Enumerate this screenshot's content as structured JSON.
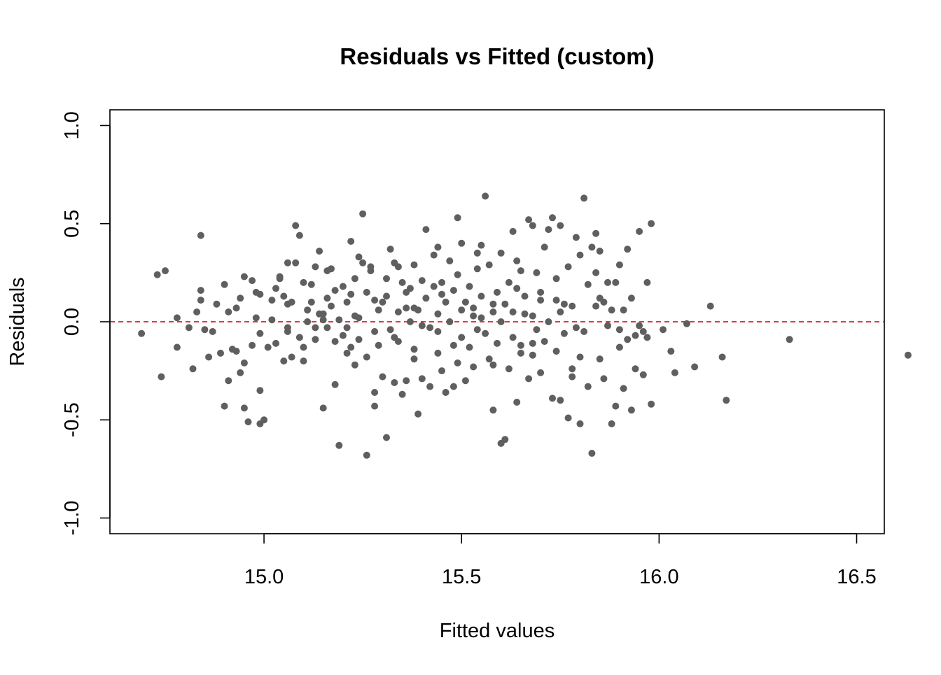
{
  "chart_data": {
    "type": "scatter",
    "title": "Residuals vs Fitted (custom)",
    "xlabel": "Fitted values",
    "ylabel": "Residuals",
    "xlim": [
      14.61,
      16.57
    ],
    "ylim": [
      -1.08,
      1.08
    ],
    "xticks": [
      {
        "value": 15.0,
        "label": "15.0"
      },
      {
        "value": 15.5,
        "label": "15.5"
      },
      {
        "value": 16.0,
        "label": "16.0"
      },
      {
        "value": 16.5,
        "label": "16.5"
      }
    ],
    "yticks": [
      {
        "value": -1.0,
        "label": "-1.0"
      },
      {
        "value": -0.5,
        "label": "-0.5"
      },
      {
        "value": 0.0,
        "label": "0.0"
      },
      {
        "value": 0.5,
        "label": "0.5"
      },
      {
        "value": 1.0,
        "label": "1.0"
      }
    ],
    "reference_line": {
      "y": 0,
      "style": "dashed",
      "color": "#e31a1c"
    },
    "point_color": "#5f5f5f",
    "grid": false,
    "series": [
      {
        "points": [
          [
            14.69,
            -0.06
          ],
          [
            14.73,
            0.24
          ],
          [
            14.75,
            0.26
          ],
          [
            14.74,
            -0.28
          ],
          [
            14.78,
            0.02
          ],
          [
            14.78,
            -0.13
          ],
          [
            14.81,
            -0.03
          ],
          [
            14.82,
            -0.24
          ],
          [
            14.83,
            0.05
          ],
          [
            14.84,
            0.16
          ],
          [
            14.84,
            0.11
          ],
          [
            14.84,
            0.44
          ],
          [
            14.85,
            -0.04
          ],
          [
            14.86,
            -0.18
          ],
          [
            14.87,
            -0.05
          ],
          [
            14.88,
            0.09
          ],
          [
            14.89,
            -0.16
          ],
          [
            14.9,
            0.19
          ],
          [
            14.9,
            -0.43
          ],
          [
            14.91,
            -0.3
          ],
          [
            14.91,
            0.05
          ],
          [
            14.92,
            -0.14
          ],
          [
            14.93,
            0.07
          ],
          [
            14.93,
            -0.15
          ],
          [
            14.94,
            -0.26
          ],
          [
            14.94,
            0.12
          ],
          [
            14.95,
            -0.21
          ],
          [
            14.95,
            0.23
          ],
          [
            14.95,
            -0.44
          ],
          [
            14.96,
            -0.51
          ],
          [
            14.97,
            -0.12
          ],
          [
            14.97,
            0.21
          ],
          [
            14.98,
            0.15
          ],
          [
            14.98,
            0.02
          ],
          [
            14.99,
            -0.35
          ],
          [
            14.99,
            -0.52
          ],
          [
            14.99,
            0.14
          ],
          [
            15.0,
            -0.5
          ],
          [
            15.01,
            -0.13
          ],
          [
            15.02,
            0.11
          ],
          [
            15.03,
            0.17
          ],
          [
            15.03,
            -0.11
          ],
          [
            15.04,
            0.22
          ],
          [
            15.04,
            0.23
          ],
          [
            15.05,
            0.13
          ],
          [
            15.06,
            0.09
          ],
          [
            15.06,
            -0.03
          ],
          [
            15.06,
            -0.05
          ],
          [
            15.07,
            0.1
          ],
          [
            15.08,
            0.3
          ],
          [
            15.08,
            0.49
          ],
          [
            15.09,
            0.44
          ],
          [
            15.09,
            -0.08
          ],
          [
            15.1,
            -0.2
          ],
          [
            15.1,
            -0.13
          ],
          [
            15.11,
            0.0
          ],
          [
            15.12,
            0.1
          ],
          [
            15.12,
            0.19
          ],
          [
            15.13,
            -0.03
          ],
          [
            15.13,
            0.28
          ],
          [
            15.14,
            0.36
          ],
          [
            15.14,
            0.04
          ],
          [
            15.15,
            0.04
          ],
          [
            15.15,
            -0.44
          ],
          [
            15.16,
            -0.03
          ],
          [
            15.16,
            0.26
          ],
          [
            15.17,
            0.27
          ],
          [
            15.17,
            0.08
          ],
          [
            15.18,
            -0.1
          ],
          [
            15.18,
            0.16
          ],
          [
            15.19,
            -0.63
          ],
          [
            15.19,
            0.01
          ],
          [
            15.2,
            0.18
          ],
          [
            15.2,
            -0.07
          ],
          [
            15.21,
            -0.03
          ],
          [
            15.21,
            0.1
          ],
          [
            15.22,
            0.14
          ],
          [
            15.22,
            0.41
          ],
          [
            15.23,
            0.22
          ],
          [
            15.23,
            0.03
          ],
          [
            15.24,
            0.02
          ],
          [
            15.24,
            -0.09
          ],
          [
            15.25,
            0.55
          ],
          [
            15.25,
            0.3
          ],
          [
            15.26,
            -0.18
          ],
          [
            15.26,
            -0.68
          ],
          [
            15.27,
            0.28
          ],
          [
            15.27,
            0.26
          ],
          [
            15.28,
            -0.43
          ],
          [
            15.28,
            0.11
          ],
          [
            15.29,
            0.06
          ],
          [
            15.29,
            -0.12
          ],
          [
            15.3,
            -0.28
          ],
          [
            15.3,
            0.1
          ],
          [
            15.31,
            -0.59
          ],
          [
            15.31,
            0.13
          ],
          [
            15.32,
            -0.04
          ],
          [
            15.32,
            0.37
          ],
          [
            15.33,
            -0.31
          ],
          [
            15.33,
            0.3
          ],
          [
            15.34,
            0.05
          ],
          [
            15.34,
            -0.1
          ],
          [
            15.35,
            -0.37
          ],
          [
            15.35,
            0.2
          ],
          [
            15.36,
            0.15
          ],
          [
            15.36,
            -0.3
          ],
          [
            15.37,
            0.17
          ],
          [
            15.37,
            0.0
          ],
          [
            15.38,
            0.29
          ],
          [
            15.38,
            -0.14
          ],
          [
            15.39,
            -0.47
          ],
          [
            15.39,
            0.06
          ],
          [
            15.4,
            0.21
          ],
          [
            15.4,
            -0.29
          ],
          [
            15.41,
            0.12
          ],
          [
            15.41,
            0.47
          ],
          [
            15.42,
            -0.03
          ],
          [
            15.42,
            -0.33
          ],
          [
            15.43,
            0.18
          ],
          [
            15.43,
            0.34
          ],
          [
            15.44,
            -0.05
          ],
          [
            15.44,
            0.04
          ],
          [
            15.45,
            0.2
          ],
          [
            15.45,
            -0.25
          ],
          [
            15.46,
            0.1
          ],
          [
            15.46,
            -0.36
          ],
          [
            15.47,
            0.0
          ],
          [
            15.47,
            0.31
          ],
          [
            15.48,
            -0.12
          ],
          [
            15.48,
            0.16
          ],
          [
            15.49,
            0.53
          ],
          [
            15.49,
            -0.21
          ],
          [
            15.5,
            0.4
          ],
          [
            15.5,
            0.06
          ],
          [
            15.51,
            -0.3
          ],
          [
            15.51,
            0.1
          ],
          [
            15.52,
            -0.13
          ],
          [
            15.52,
            0.18
          ],
          [
            15.53,
            0.07
          ],
          [
            15.53,
            -0.23
          ],
          [
            15.54,
            0.35
          ],
          [
            15.54,
            -0.04
          ],
          [
            15.55,
            0.39
          ],
          [
            15.55,
            0.02
          ],
          [
            15.56,
            0.64
          ],
          [
            15.56,
            -0.06
          ],
          [
            15.57,
            0.29
          ],
          [
            15.57,
            -0.19
          ],
          [
            15.58,
            0.05
          ],
          [
            15.58,
            -0.45
          ],
          [
            15.59,
            0.15
          ],
          [
            15.59,
            -0.11
          ],
          [
            15.6,
            0.35
          ],
          [
            15.6,
            -0.62
          ],
          [
            15.61,
            -0.6
          ],
          [
            15.61,
            0.09
          ],
          [
            15.62,
            0.2
          ],
          [
            15.62,
            -0.24
          ],
          [
            15.63,
            0.05
          ],
          [
            15.63,
            0.46
          ],
          [
            15.64,
            -0.41
          ],
          [
            15.64,
            0.17
          ],
          [
            15.65,
            0.26
          ],
          [
            15.65,
            -0.16
          ],
          [
            15.66,
            0.04
          ],
          [
            15.66,
            0.13
          ],
          [
            15.67,
            0.52
          ],
          [
            15.67,
            -0.29
          ],
          [
            15.68,
            0.49
          ],
          [
            15.68,
            0.03
          ],
          [
            15.69,
            -0.04
          ],
          [
            15.69,
            0.25
          ],
          [
            15.7,
            0.15
          ],
          [
            15.7,
            -0.26
          ],
          [
            15.71,
            -0.1
          ],
          [
            15.71,
            0.38
          ],
          [
            15.72,
            0.47
          ],
          [
            15.72,
            0.0
          ],
          [
            15.73,
            -0.39
          ],
          [
            15.73,
            0.53
          ],
          [
            15.74,
            0.11
          ],
          [
            15.74,
            -0.15
          ],
          [
            15.75,
            0.49
          ],
          [
            15.75,
            -0.4
          ],
          [
            15.76,
            0.09
          ],
          [
            15.76,
            -0.06
          ],
          [
            15.77,
            0.28
          ],
          [
            15.77,
            -0.49
          ],
          [
            15.78,
            0.08
          ],
          [
            15.78,
            -0.28
          ],
          [
            15.79,
            0.43
          ],
          [
            15.79,
            -0.03
          ],
          [
            15.8,
            0.34
          ],
          [
            15.8,
            -0.52
          ],
          [
            15.81,
            -0.05
          ],
          [
            15.81,
            0.63
          ],
          [
            15.82,
            0.19
          ],
          [
            15.82,
            -0.33
          ],
          [
            15.83,
            0.38
          ],
          [
            15.83,
            -0.67
          ],
          [
            15.84,
            0.45
          ],
          [
            15.84,
            0.08
          ],
          [
            15.85,
            -0.19
          ],
          [
            15.85,
            0.36
          ],
          [
            15.86,
            0.1
          ],
          [
            15.86,
            -0.29
          ],
          [
            15.87,
            -0.02
          ],
          [
            15.87,
            0.2
          ],
          [
            15.88,
            -0.52
          ],
          [
            15.88,
            0.06
          ],
          [
            15.89,
            0.2
          ],
          [
            15.89,
            -0.43
          ],
          [
            15.9,
            -0.04
          ],
          [
            15.9,
            0.29
          ],
          [
            15.91,
            -0.34
          ],
          [
            15.91,
            0.06
          ],
          [
            15.92,
            -0.09
          ],
          [
            15.92,
            0.37
          ],
          [
            15.93,
            -0.45
          ],
          [
            15.93,
            0.12
          ],
          [
            15.94,
            -0.07
          ],
          [
            15.94,
            -0.24
          ],
          [
            15.95,
            0.46
          ],
          [
            15.95,
            -0.02
          ],
          [
            15.96,
            -0.27
          ],
          [
            15.96,
            -0.05
          ],
          [
            15.97,
            -0.08
          ],
          [
            15.97,
            0.2
          ],
          [
            15.98,
            -0.42
          ],
          [
            15.98,
            0.5
          ],
          [
            16.01,
            -0.04
          ],
          [
            16.03,
            -0.15
          ],
          [
            15.15,
            0.01
          ],
          [
            15.13,
            -0.09
          ],
          [
            15.06,
            0.3
          ],
          [
            15.1,
            0.2
          ],
          [
            15.05,
            -0.2
          ],
          [
            15.22,
            -0.13
          ],
          [
            15.23,
            -0.22
          ],
          [
            15.28,
            -0.05
          ],
          [
            15.33,
            -0.08
          ],
          [
            15.38,
            0.07
          ],
          [
            15.44,
            -0.16
          ],
          [
            15.49,
            0.24
          ],
          [
            15.53,
            0.03
          ],
          [
            15.58,
            0.09
          ],
          [
            15.63,
            -0.08
          ],
          [
            15.68,
            -0.11
          ],
          [
            15.4,
            -0.02
          ],
          [
            15.36,
            0.07
          ],
          [
            15.31,
            0.22
          ],
          [
            15.26,
            0.15
          ],
          [
            15.21,
            -0.16
          ],
          [
            15.16,
            0.12
          ],
          [
            15.11,
            0.06
          ],
          [
            15.07,
            -0.18
          ],
          [
            15.02,
            0.01
          ],
          [
            14.99,
            -0.06
          ],
          [
            15.45,
            0.14
          ],
          [
            15.5,
            -0.08
          ],
          [
            15.55,
            0.13
          ],
          [
            15.6,
            0.0
          ],
          [
            15.65,
            -0.12
          ],
          [
            15.7,
            0.11
          ],
          [
            15.75,
            0.05
          ],
          [
            15.8,
            -0.18
          ],
          [
            15.85,
            0.12
          ],
          [
            15.9,
            -0.13
          ],
          [
            15.18,
            -0.32
          ],
          [
            15.28,
            -0.36
          ],
          [
            15.38,
            -0.19
          ],
          [
            15.48,
            -0.33
          ],
          [
            15.58,
            -0.22
          ],
          [
            15.68,
            -0.17
          ],
          [
            15.78,
            -0.24
          ],
          [
            15.24,
            0.33
          ],
          [
            15.34,
            0.28
          ],
          [
            15.44,
            0.38
          ],
          [
            15.54,
            0.27
          ],
          [
            15.64,
            0.31
          ],
          [
            15.74,
            0.22
          ],
          [
            15.84,
            0.25
          ],
          [
            16.04,
            -0.26
          ],
          [
            16.07,
            -0.01
          ],
          [
            16.09,
            -0.23
          ],
          [
            16.13,
            0.08
          ],
          [
            16.16,
            -0.18
          ],
          [
            16.17,
            -0.4
          ],
          [
            16.33,
            -0.09
          ],
          [
            16.63,
            -0.17
          ]
        ]
      }
    ]
  }
}
